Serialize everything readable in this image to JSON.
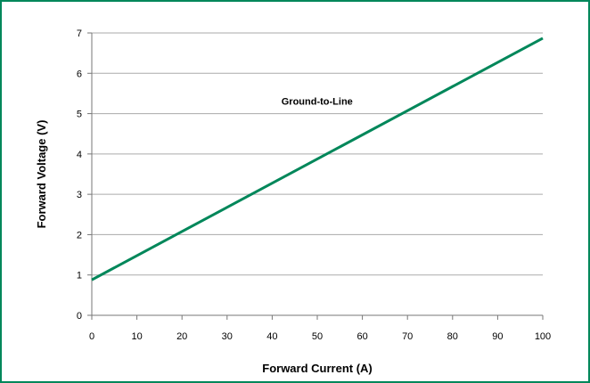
{
  "chart_data": {
    "type": "line",
    "title": "",
    "xlabel": "Forward Current (A)",
    "ylabel": "Forward Voltage  (V)",
    "xlim": [
      0,
      100
    ],
    "ylim": [
      0,
      7
    ],
    "xticks": [
      0,
      10,
      20,
      30,
      40,
      50,
      60,
      70,
      80,
      90,
      100
    ],
    "yticks": [
      0,
      1,
      2,
      3,
      4,
      5,
      6,
      7
    ],
    "grid": "horizontal",
    "legend": "none",
    "annotations": [
      {
        "text": "Ground-to-Line",
        "x": 63,
        "y": 5.6
      }
    ],
    "series": [
      {
        "color": "#00875a",
        "x": [
          0,
          100
        ],
        "y": [
          0.88,
          6.87
        ]
      }
    ]
  },
  "colors": {
    "frame": "#00875a",
    "series": "#00875a",
    "grid": "#aaaaaa"
  }
}
